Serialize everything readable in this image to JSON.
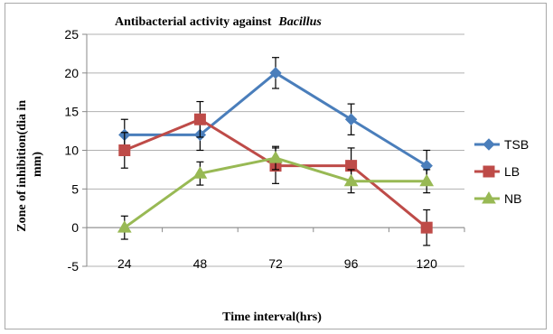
{
  "chart_data": {
    "type": "line",
    "title": "Antibacterial activity against",
    "title_italic": "Bacillus",
    "xlabel": "Time interval(hrs)",
    "ylabel_line1": "Zone of inhibition(dia in",
    "ylabel_line2": "mm)",
    "categories": [
      "24",
      "48",
      "72",
      "96",
      "120"
    ],
    "y_ticks": [
      -5,
      0,
      5,
      10,
      15,
      20,
      25
    ],
    "ylim": [
      -5,
      25
    ],
    "grid": true,
    "legend_position": "right",
    "series": [
      {
        "name": "TSB",
        "color": "#4a7ebb",
        "marker": "diamond",
        "values": [
          12,
          12,
          20,
          14,
          8
        ],
        "errors": [
          2,
          2,
          2,
          2,
          2
        ]
      },
      {
        "name": "LB",
        "color": "#be4b48",
        "marker": "square",
        "values": [
          10,
          14,
          8,
          8,
          0
        ],
        "errors": [
          2.3,
          2.3,
          2.3,
          2.3,
          2.3
        ]
      },
      {
        "name": "NB",
        "color": "#98b954",
        "marker": "triangle",
        "values": [
          0,
          7,
          9,
          6,
          6
        ],
        "errors": [
          1.5,
          1.5,
          1.5,
          1.5,
          1.5
        ]
      }
    ]
  }
}
